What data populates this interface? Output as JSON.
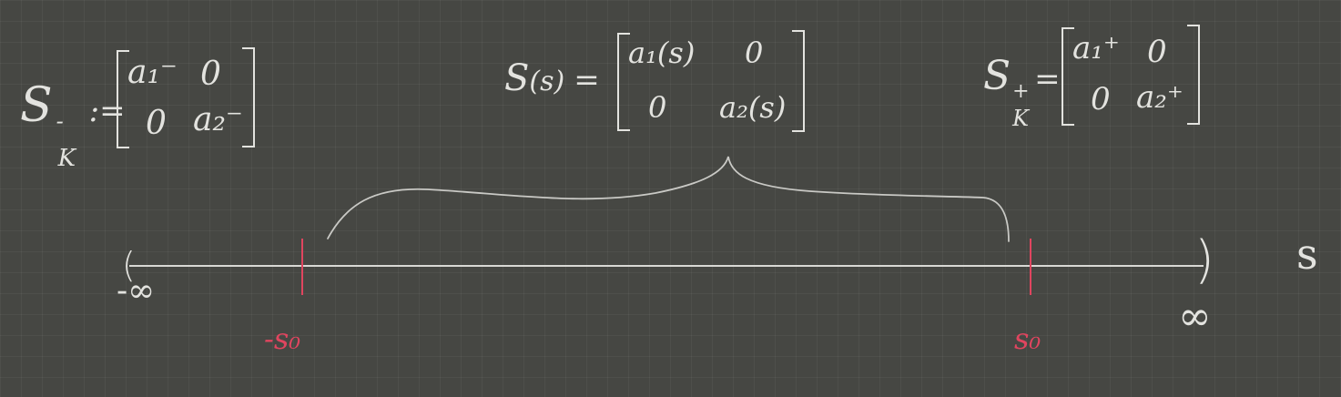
{
  "left_matrix": {
    "lhs": {
      "symbol": "S",
      "sup": "-",
      "sub": "K",
      "op": ":="
    },
    "cells": [
      [
        "a₁⁻",
        "0"
      ],
      [
        "0",
        "a₂⁻"
      ]
    ]
  },
  "middle_matrix": {
    "lhs": {
      "symbol": "S",
      "arg": "(s)",
      "op": "="
    },
    "cells": [
      [
        "a₁(s)",
        "0"
      ],
      [
        "0",
        "a₂(s)"
      ]
    ]
  },
  "right_matrix": {
    "lhs": {
      "symbol": "S",
      "sup": "+",
      "sub": "K",
      "op": "="
    },
    "cells": [
      [
        "a₁⁺",
        "0"
      ],
      [
        "0",
        "a₂⁺"
      ]
    ]
  },
  "number_line": {
    "left_end": "(",
    "right_end": ")",
    "left_label": "-∞",
    "right_label": "∞",
    "axis_variable": "s",
    "marks": [
      {
        "label": "-s₀"
      },
      {
        "label": "s₀"
      }
    ]
  },
  "colors": {
    "background": "#464743",
    "ink": "#e3e3df",
    "accent_red": "#e0455f"
  }
}
